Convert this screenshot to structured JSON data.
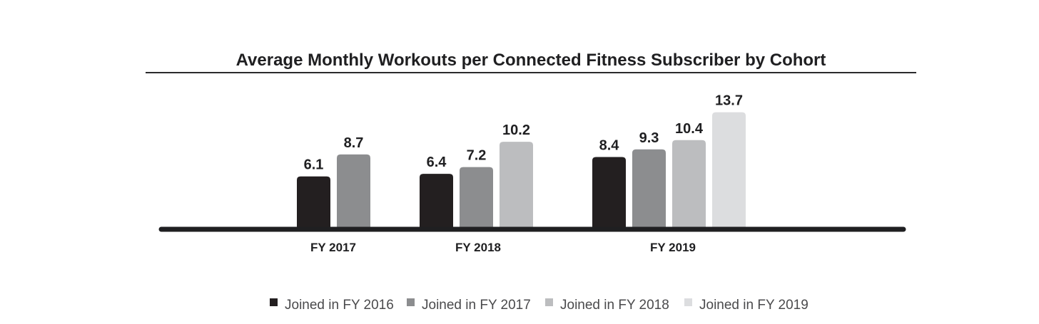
{
  "chart_data": {
    "type": "bar",
    "title": "Average Monthly Workouts per Connected Fitness Subscriber by Cohort",
    "categories": [
      "FY 2017",
      "FY 2018",
      "FY 2019"
    ],
    "series": [
      {
        "name": "Joined in FY 2016",
        "color": "#231f20",
        "values": [
          6.1,
          6.4,
          8.4
        ]
      },
      {
        "name": "Joined in FY 2017",
        "color": "#8c8d8f",
        "values": [
          8.7,
          7.2,
          9.3
        ]
      },
      {
        "name": "Joined in FY 2018",
        "color": "#bcbdbf",
        "values": [
          null,
          10.2,
          10.4
        ]
      },
      {
        "name": "Joined in FY 2019",
        "color": "#dcdddf",
        "values": [
          null,
          null,
          13.7
        ]
      }
    ],
    "ylim": [
      0,
      15
    ],
    "grid": false,
    "legend_position": "bottom"
  }
}
